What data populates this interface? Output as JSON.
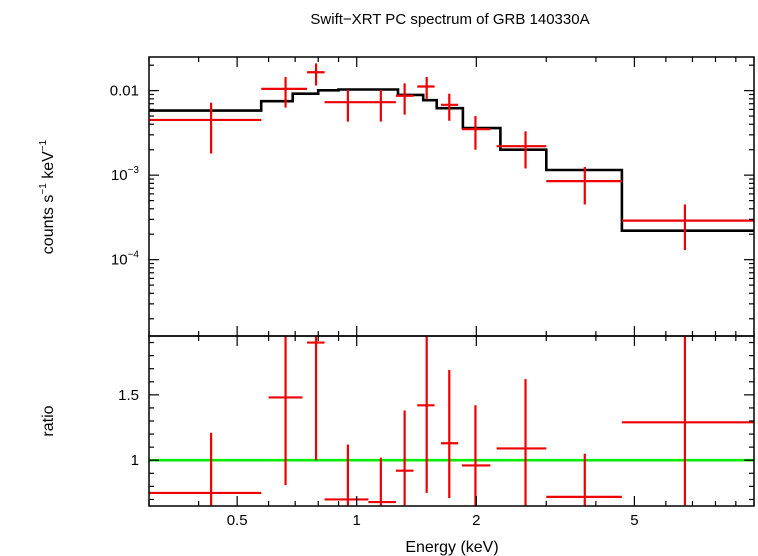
{
  "chart_data": {
    "type": "scatter",
    "title": "Swift−XRT PC spectrum of GRB 140330A",
    "xlabel": "Energy (keV)",
    "xscale": "log",
    "xlim": [
      0.3,
      10
    ],
    "x_ticks": [
      {
        "value": 0.5,
        "label": "0.5"
      },
      {
        "value": 1,
        "label": "1"
      },
      {
        "value": 2,
        "label": "2"
      },
      {
        "value": 5,
        "label": "5"
      }
    ],
    "panels": [
      {
        "name": "spectrum",
        "ylabel_parts": [
          "counts s",
          "−1",
          " keV",
          "−1"
        ],
        "yscale": "log",
        "ylim": [
          1.25e-05,
          0.025
        ],
        "y_ticks": [
          {
            "value": 0.01,
            "base": "0.01",
            "sup": ""
          },
          {
            "value": 0.001,
            "base": "10",
            "sup": "−3"
          },
          {
            "value": 0.0001,
            "base": "10",
            "sup": "−4"
          }
        ],
        "data_points": [
          {
            "x": 0.43,
            "xlo": 0.3,
            "xhi": 0.575,
            "y": 0.0045,
            "ylo": 0.0018,
            "yhi": 0.0072
          },
          {
            "x": 0.662,
            "xlo": 0.575,
            "xhi": 0.75,
            "y": 0.0105,
            "ylo": 0.0063,
            "yhi": 0.0145
          },
          {
            "x": 0.79,
            "xlo": 0.75,
            "xhi": 0.83,
            "y": 0.0165,
            "ylo": 0.0115,
            "yhi": 0.021
          },
          {
            "x": 0.95,
            "xlo": 0.83,
            "xhi": 1.07,
            "y": 0.0073,
            "ylo": 0.0043,
            "yhi": 0.0102
          },
          {
            "x": 1.15,
            "xlo": 1.07,
            "xhi": 1.255,
            "y": 0.0073,
            "ylo": 0.0043,
            "yhi": 0.0102
          },
          {
            "x": 1.32,
            "xlo": 1.255,
            "xhi": 1.39,
            "y": 0.0087,
            "ylo": 0.0052,
            "yhi": 0.0122
          },
          {
            "x": 1.5,
            "xlo": 1.42,
            "xhi": 1.57,
            "y": 0.0112,
            "ylo": 0.008,
            "yhi": 0.0145
          },
          {
            "x": 1.71,
            "xlo": 1.63,
            "xhi": 1.8,
            "y": 0.0068,
            "ylo": 0.0044,
            "yhi": 0.0092
          },
          {
            "x": 1.99,
            "xlo": 1.84,
            "xhi": 2.17,
            "y": 0.0035,
            "ylo": 0.002,
            "yhi": 0.005
          },
          {
            "x": 2.66,
            "xlo": 2.25,
            "xhi": 3.0,
            "y": 0.0022,
            "ylo": 0.0012,
            "yhi": 0.0033
          },
          {
            "x": 3.75,
            "xlo": 3.0,
            "xhi": 4.65,
            "y": 0.00085,
            "ylo": 0.00045,
            "yhi": 0.00125
          },
          {
            "x": 6.7,
            "xlo": 4.65,
            "xhi": 10.0,
            "y": 0.00029,
            "ylo": 0.00013,
            "yhi": 0.00045
          }
        ],
        "model_steps": [
          {
            "x0": 0.3,
            "x1": 0.575,
            "y": 0.0058
          },
          {
            "x0": 0.575,
            "x1": 0.69,
            "y": 0.0075
          },
          {
            "x0": 0.69,
            "x1": 0.8,
            "y": 0.0092
          },
          {
            "x0": 0.8,
            "x1": 0.9,
            "y": 0.0101
          },
          {
            "x0": 0.9,
            "x1": 1.27,
            "y": 0.0103
          },
          {
            "x0": 1.27,
            "x1": 1.47,
            "y": 0.0089
          },
          {
            "x0": 1.47,
            "x1": 1.59,
            "y": 0.0077
          },
          {
            "x0": 1.59,
            "x1": 1.85,
            "y": 0.0062
          },
          {
            "x0": 1.85,
            "x1": 2.3,
            "y": 0.0036
          },
          {
            "x0": 2.3,
            "x1": 3.0,
            "y": 0.002
          },
          {
            "x0": 3.0,
            "x1": 4.65,
            "y": 0.00115
          },
          {
            "x0": 4.65,
            "x1": 10.0,
            "y": 0.00022
          }
        ],
        "data_color": "#ee0000",
        "model_color": "#000000"
      },
      {
        "name": "ratio",
        "ylabel_parts": [
          "ratio"
        ],
        "yscale": "linear",
        "ylim": [
          0.65,
          1.95
        ],
        "y_ticks": [
          {
            "value": 1,
            "base": "1",
            "sup": ""
          },
          {
            "value": 1.5,
            "base": "1.5",
            "sup": ""
          }
        ],
        "reference_line": {
          "y": 1,
          "color": "#00ee00"
        },
        "data_points": [
          {
            "x": 0.43,
            "xlo": 0.3,
            "xhi": 0.575,
            "y": 0.75,
            "ylo": 0.45,
            "yhi": 1.21
          },
          {
            "x": 0.662,
            "xlo": 0.6,
            "xhi": 0.73,
            "y": 1.48,
            "ylo": 0.81,
            "yhi": 1.95
          },
          {
            "x": 0.79,
            "xlo": 0.75,
            "xhi": 0.83,
            "y": 1.9,
            "ylo": 1.0,
            "yhi": 1.95
          },
          {
            "x": 0.95,
            "xlo": 0.83,
            "xhi": 1.07,
            "y": 0.7,
            "ylo": 0.45,
            "yhi": 1.12
          },
          {
            "x": 1.15,
            "xlo": 1.07,
            "xhi": 1.255,
            "y": 0.68,
            "ylo": 0.45,
            "yhi": 1.02
          },
          {
            "x": 1.32,
            "xlo": 1.255,
            "xhi": 1.39,
            "y": 0.92,
            "ylo": 0.5,
            "yhi": 1.38
          },
          {
            "x": 1.5,
            "xlo": 1.42,
            "xhi": 1.57,
            "y": 1.42,
            "ylo": 0.75,
            "yhi": 1.95
          },
          {
            "x": 1.71,
            "xlo": 1.63,
            "xhi": 1.8,
            "y": 1.13,
            "ylo": 0.71,
            "yhi": 1.69
          },
          {
            "x": 1.99,
            "xlo": 1.84,
            "xhi": 2.17,
            "y": 0.96,
            "ylo": 0.55,
            "yhi": 1.42
          },
          {
            "x": 2.66,
            "xlo": 2.25,
            "xhi": 3.0,
            "y": 1.09,
            "ylo": 0.58,
            "yhi": 1.62
          },
          {
            "x": 3.75,
            "xlo": 3.0,
            "xhi": 4.65,
            "y": 0.72,
            "ylo": 0.45,
            "yhi": 1.05
          },
          {
            "x": 6.7,
            "xlo": 4.65,
            "xhi": 10.0,
            "y": 1.29,
            "ylo": 0.55,
            "yhi": 1.95
          }
        ],
        "data_color": "#ee0000"
      }
    ]
  }
}
